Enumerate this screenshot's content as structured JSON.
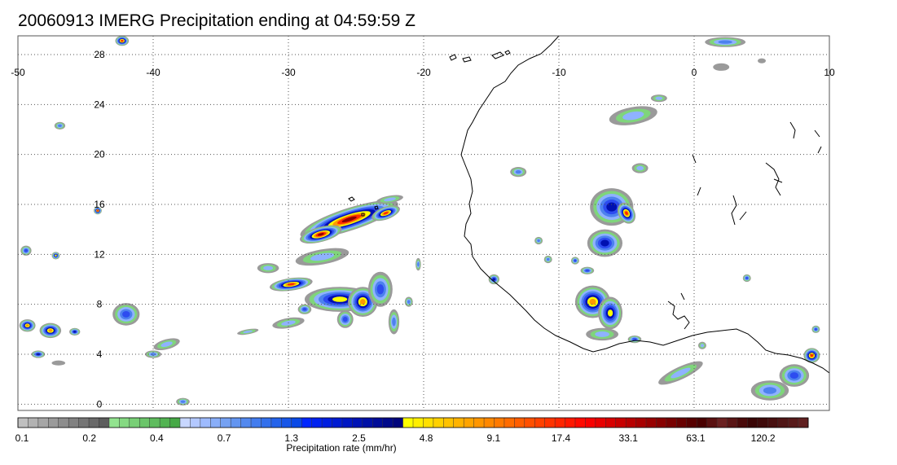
{
  "title": "20060913 IMERG Precipitation ending at 04:59:59 Z",
  "map": {
    "lon_range": [
      -50,
      10
    ],
    "lat_range": [
      -0.5,
      29.5
    ],
    "lon_ticks": [
      {
        "value": -50,
        "label": "-50"
      },
      {
        "value": -40,
        "label": "-40"
      },
      {
        "value": -30,
        "label": "-30"
      },
      {
        "value": -20,
        "label": "-20"
      },
      {
        "value": -10,
        "label": "-10"
      },
      {
        "value": 0,
        "label": "0"
      },
      {
        "value": 10,
        "label": "10"
      }
    ],
    "lat_ticks": [
      {
        "value": 0,
        "label": "0"
      },
      {
        "value": 4,
        "label": "4"
      },
      {
        "value": 8,
        "label": "8"
      },
      {
        "value": 12,
        "label": "12"
      },
      {
        "value": 16,
        "label": "16"
      },
      {
        "value": 20,
        "label": "20"
      },
      {
        "value": 24,
        "label": "24"
      },
      {
        "value": 28,
        "label": "28"
      }
    ],
    "grid": "dotted",
    "coastline_color": "#000000",
    "rain_cells": [
      {
        "lon": -25.5,
        "lat": 14.8,
        "rx": 3.8,
        "ry": 0.9,
        "rot": -18,
        "peak": 10
      },
      {
        "lon": -27.6,
        "lat": 13.6,
        "rx": 1.6,
        "ry": 0.6,
        "rot": -15,
        "peak": 10
      },
      {
        "lon": -22.8,
        "lat": 15.3,
        "rx": 1.1,
        "ry": 0.5,
        "rot": -20,
        "peak": 9
      },
      {
        "lon": -29.8,
        "lat": 9.6,
        "rx": 1.6,
        "ry": 0.5,
        "rot": -8,
        "peak": 9
      },
      {
        "lon": -26.2,
        "lat": 8.4,
        "rx": 2.6,
        "ry": 1.0,
        "rot": 0,
        "peak": 7
      },
      {
        "lon": -24.5,
        "lat": 8.2,
        "rx": 1.1,
        "ry": 1.2,
        "rot": 0,
        "peak": 8
      },
      {
        "lon": -23.2,
        "lat": 9.2,
        "rx": 0.9,
        "ry": 1.4,
        "rot": 0,
        "peak": 5
      },
      {
        "lon": -25.8,
        "lat": 6.8,
        "rx": 0.6,
        "ry": 0.7,
        "rot": 0,
        "peak": 5
      },
      {
        "lon": -28.8,
        "lat": 7.6,
        "rx": 0.5,
        "ry": 0.4,
        "rot": 0,
        "peak": 5
      },
      {
        "lon": -22.2,
        "lat": 6.6,
        "rx": 0.4,
        "ry": 1.0,
        "rot": 0,
        "peak": 4
      },
      {
        "lon": -21.1,
        "lat": 8.2,
        "rx": 0.3,
        "ry": 0.4,
        "rot": 0,
        "peak": 4
      },
      {
        "lon": -20.4,
        "lat": 11.2,
        "rx": 0.2,
        "ry": 0.5,
        "rot": 0,
        "peak": 4
      },
      {
        "lon": -6.1,
        "lat": 15.8,
        "rx": 1.6,
        "ry": 1.5,
        "rot": 0,
        "peak": 6
      },
      {
        "lon": -5.0,
        "lat": 15.3,
        "rx": 0.6,
        "ry": 0.9,
        "rot": -30,
        "peak": 9
      },
      {
        "lon": -6.6,
        "lat": 12.9,
        "rx": 1.3,
        "ry": 1.1,
        "rot": 0,
        "peak": 6
      },
      {
        "lon": -7.5,
        "lat": 8.2,
        "rx": 1.3,
        "ry": 1.3,
        "rot": 0,
        "peak": 8
      },
      {
        "lon": -6.2,
        "lat": 7.3,
        "rx": 0.9,
        "ry": 1.3,
        "rot": 0,
        "peak": 7
      },
      {
        "lon": -4.4,
        "lat": 5.2,
        "rx": 0.5,
        "ry": 0.3,
        "rot": 0,
        "peak": 5
      },
      {
        "lon": -42.0,
        "lat": 7.2,
        "rx": 1.0,
        "ry": 0.9,
        "rot": 0,
        "peak": 5
      },
      {
        "lon": -47.6,
        "lat": 5.9,
        "rx": 0.8,
        "ry": 0.6,
        "rot": 0,
        "peak": 8
      },
      {
        "lon": -49.3,
        "lat": 6.3,
        "rx": 0.6,
        "ry": 0.5,
        "rot": 0,
        "peak": 8
      },
      {
        "lon": -48.5,
        "lat": 4.0,
        "rx": 0.5,
        "ry": 0.3,
        "rot": 0,
        "peak": 6
      },
      {
        "lon": -45.8,
        "lat": 5.8,
        "rx": 0.4,
        "ry": 0.3,
        "rot": 0,
        "peak": 6
      },
      {
        "lon": -40.0,
        "lat": 4.0,
        "rx": 0.6,
        "ry": 0.3,
        "rot": 0,
        "peak": 4
      },
      {
        "lon": -44.1,
        "lat": 15.5,
        "rx": 0.3,
        "ry": 0.3,
        "rot": 0,
        "peak": 9
      },
      {
        "lon": -47.2,
        "lat": 11.9,
        "rx": 0.3,
        "ry": 0.3,
        "rot": 0,
        "peak": 7
      },
      {
        "lon": -49.4,
        "lat": 12.3,
        "rx": 0.4,
        "ry": 0.4,
        "rot": 0,
        "peak": 5
      },
      {
        "lon": -42.3,
        "lat": 29.1,
        "rx": 0.5,
        "ry": 0.4,
        "rot": 0,
        "peak": 9
      },
      {
        "lon": -37.8,
        "lat": 0.2,
        "rx": 0.5,
        "ry": 0.3,
        "rot": 0,
        "peak": 4
      },
      {
        "lon": 8.7,
        "lat": 3.9,
        "rx": 0.6,
        "ry": 0.6,
        "rot": 0,
        "peak": 9
      },
      {
        "lon": 7.4,
        "lat": 2.3,
        "rx": 1.1,
        "ry": 0.9,
        "rot": 0,
        "peak": 5
      },
      {
        "lon": 5.6,
        "lat": 1.1,
        "rx": 1.4,
        "ry": 0.8,
        "rot": 0,
        "peak": 4
      },
      {
        "lon": 9.0,
        "lat": 6.0,
        "rx": 0.3,
        "ry": 0.3,
        "rot": 0,
        "peak": 5
      },
      {
        "lon": 3.9,
        "lat": 10.1,
        "rx": 0.3,
        "ry": 0.3,
        "rot": 0,
        "peak": 5
      },
      {
        "lon": -14.8,
        "lat": 10.0,
        "rx": 0.4,
        "ry": 0.4,
        "rot": 0,
        "peak": 6
      },
      {
        "lon": -13.0,
        "lat": 18.6,
        "rx": 0.6,
        "ry": 0.4,
        "rot": 0,
        "peak": 4
      },
      {
        "lon": -11.5,
        "lat": 13.1,
        "rx": 0.3,
        "ry": 0.3,
        "rot": 0,
        "peak": 4
      },
      {
        "lon": -10.8,
        "lat": 11.6,
        "rx": 0.3,
        "ry": 0.3,
        "rot": 0,
        "peak": 4
      },
      {
        "lon": -4.0,
        "lat": 18.9,
        "rx": 0.6,
        "ry": 0.4,
        "rot": 0,
        "peak": 3
      },
      {
        "lon": -4.5,
        "lat": 23.1,
        "rx": 1.8,
        "ry": 0.7,
        "rot": -10,
        "peak": 3
      },
      {
        "lon": -2.6,
        "lat": 24.5,
        "rx": 0.6,
        "ry": 0.3,
        "rot": 0,
        "peak": 3
      },
      {
        "lon": -1.0,
        "lat": 2.5,
        "rx": 1.8,
        "ry": 0.5,
        "rot": -25,
        "peak": 3
      },
      {
        "lon": 2.3,
        "lat": 29.0,
        "rx": 1.5,
        "ry": 0.4,
        "rot": 0,
        "peak": 4
      },
      {
        "lon": -46.9,
        "lat": 22.3,
        "rx": 0.4,
        "ry": 0.3,
        "rot": 0,
        "peak": 4
      },
      {
        "lon": -39.0,
        "lat": 4.8,
        "rx": 1.0,
        "ry": 0.4,
        "rot": -15,
        "peak": 3
      },
      {
        "lon": -33.0,
        "lat": 5.8,
        "rx": 0.8,
        "ry": 0.2,
        "rot": -10,
        "peak": 3
      },
      {
        "lon": -30.0,
        "lat": 6.5,
        "rx": 1.2,
        "ry": 0.4,
        "rot": -10,
        "peak": 3
      },
      {
        "lon": -31.5,
        "lat": 10.9,
        "rx": 0.8,
        "ry": 0.4,
        "rot": 0,
        "peak": 3
      },
      {
        "lon": -27.5,
        "lat": 11.8,
        "rx": 2.0,
        "ry": 0.6,
        "rot": -10,
        "peak": 3
      },
      {
        "lon": -22.5,
        "lat": 16.4,
        "rx": 1.0,
        "ry": 0.3,
        "rot": -10,
        "peak": 3
      },
      {
        "lon": -6.8,
        "lat": 5.6,
        "rx": 1.2,
        "ry": 0.5,
        "rot": 0,
        "peak": 3
      },
      {
        "lon": -8.8,
        "lat": 11.5,
        "rx": 0.3,
        "ry": 0.3,
        "rot": 0,
        "peak": 5
      },
      {
        "lon": -7.9,
        "lat": 10.7,
        "rx": 0.5,
        "ry": 0.3,
        "rot": 0,
        "peak": 5
      },
      {
        "lon": 0.6,
        "lat": 4.7,
        "rx": 0.3,
        "ry": 0.3,
        "rot": 0,
        "peak": 3
      },
      {
        "lon": 5.0,
        "lat": 27.5,
        "rx": 0.3,
        "ry": 0.2,
        "rot": 0,
        "peak": 1
      },
      {
        "lon": 2.0,
        "lat": 27.0,
        "rx": 0.6,
        "ry": 0.3,
        "rot": 0,
        "peak": 1
      },
      {
        "lon": -47.0,
        "lat": 3.3,
        "rx": 0.5,
        "ry": 0.2,
        "rot": 0,
        "peak": 1
      }
    ]
  },
  "colorbar": {
    "colors": [
      "#bfbfbf",
      "#b2b2b2",
      "#a6a6a6",
      "#9a9a9a",
      "#8d8d8d",
      "#818181",
      "#757575",
      "#696969",
      "#5d5d5d",
      "#92e38f",
      "#85d982",
      "#78cf76",
      "#6bc56a",
      "#5fbc5e",
      "#52b352",
      "#47a947",
      "#c8d7ff",
      "#b3c8ff",
      "#9ebbff",
      "#89aef8",
      "#75a1f2",
      "#6395f0",
      "#5389ef",
      "#427cee",
      "#3370ec",
      "#2463ea",
      "#1756e8",
      "#0a49e6",
      "#0026ff",
      "#0022f0",
      "#001ee0",
      "#001bd2",
      "#0017c3",
      "#0013b5",
      "#0010a6",
      "#000c98",
      "#00098a",
      "#00057c",
      "#ffff00",
      "#ffef00",
      "#ffe000",
      "#ffd100",
      "#ffc200",
      "#ffb300",
      "#ffa400",
      "#ff9600",
      "#ff8800",
      "#ff7a00",
      "#ff6c00",
      "#ff5e00",
      "#ff5000",
      "#ff4200",
      "#ff3400",
      "#ff2600",
      "#ff1800",
      "#ff0a00",
      "#f80000",
      "#e80000",
      "#d80000",
      "#c80000",
      "#b80000",
      "#a80000",
      "#980000",
      "#880000",
      "#780000",
      "#680000",
      "#580000",
      "#4a0000",
      "#5a1010",
      "#6a2020",
      "#5a1515",
      "#4a0a0a",
      "#3a0505",
      "#3f0a0a",
      "#480f0f",
      "#501515",
      "#581a1a",
      "#602020"
    ],
    "labels": [
      "0.1",
      "0.2",
      "0.4",
      "0.7",
      "1.3",
      "2.5",
      "4.8",
      "9.1",
      "17.4",
      "33.1",
      "63.1",
      "120.2"
    ],
    "caption": "Precipitation rate (mm/hr)"
  },
  "rain_palette": [
    "#ffffff",
    "#9a9a9a",
    "#7fd57b",
    "#8fb2ff",
    "#4d82ee",
    "#2d4cf0",
    "#0010b0",
    "#ffff00",
    "#ff9900",
    "#ff2a00",
    "#8a0000"
  ]
}
